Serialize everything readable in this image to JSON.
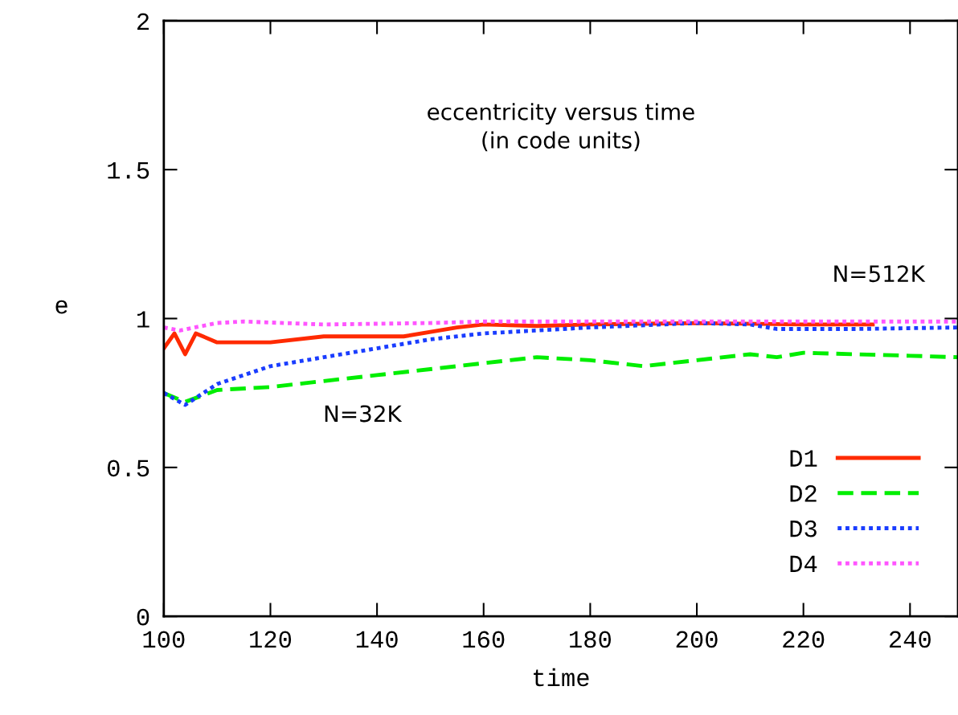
{
  "chart_data": {
    "type": "line",
    "title": "eccentricity versus time\n(in code units)",
    "xlabel": "time",
    "ylabel": "e",
    "xlim": [
      100,
      249
    ],
    "xticks": [
      100,
      120,
      140,
      160,
      180,
      200,
      220,
      240
    ],
    "ylim": [
      0,
      2
    ],
    "yticks": [
      0,
      0.5,
      1,
      1.5,
      2
    ],
    "grid": false,
    "legend": "bottom right",
    "annotations": [
      "N=32K",
      "N=512K"
    ],
    "series": [
      {
        "name": "D1",
        "color": "#ff2a00",
        "line_style": "solid",
        "x": [
          100,
          102,
          104,
          106,
          110,
          120,
          130,
          145,
          155,
          160,
          170,
          180,
          200,
          220,
          233
        ],
        "values": [
          0.9,
          0.95,
          0.88,
          0.95,
          0.92,
          0.92,
          0.94,
          0.94,
          0.97,
          0.98,
          0.975,
          0.98,
          0.985,
          0.98,
          0.98
        ]
      },
      {
        "name": "D2",
        "color": "#00ee00",
        "line_style": "dashed",
        "x": [
          100,
          104,
          110,
          120,
          130,
          140,
          150,
          160,
          170,
          180,
          190,
          200,
          210,
          215,
          220,
          230,
          240,
          249
        ],
        "values": [
          0.75,
          0.72,
          0.76,
          0.77,
          0.79,
          0.81,
          0.83,
          0.85,
          0.87,
          0.86,
          0.84,
          0.86,
          0.88,
          0.87,
          0.885,
          0.88,
          0.875,
          0.87
        ]
      },
      {
        "name": "D3",
        "color": "#1a3dff",
        "line_style": "dotted",
        "x": [
          100,
          104,
          110,
          120,
          130,
          140,
          150,
          160,
          170,
          180,
          200,
          210,
          215,
          230,
          249
        ],
        "values": [
          0.75,
          0.71,
          0.78,
          0.84,
          0.87,
          0.9,
          0.93,
          0.95,
          0.96,
          0.97,
          0.985,
          0.98,
          0.965,
          0.965,
          0.97
        ]
      },
      {
        "name": "D4",
        "color": "#ff55ff",
        "line_style": "dotted",
        "x": [
          100,
          103,
          110,
          115,
          130,
          150,
          160,
          180,
          200,
          220,
          249
        ],
        "values": [
          0.97,
          0.96,
          0.985,
          0.99,
          0.98,
          0.985,
          0.99,
          0.99,
          0.99,
          0.99,
          0.99
        ]
      }
    ]
  }
}
